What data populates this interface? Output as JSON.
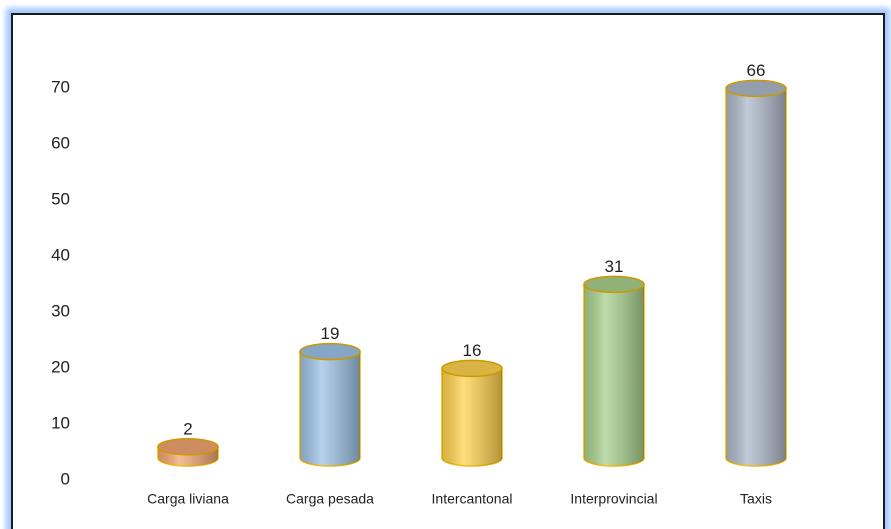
{
  "chart_data": {
    "type": "cylinder-bar",
    "categories": [
      "Carga liviana",
      "Carga pesada",
      "Intercantonal",
      "Interprovincial",
      "Taxis"
    ],
    "values": [
      2,
      19,
      16,
      31,
      66
    ],
    "colors": [
      "#f2a672",
      "#9dc3e6",
      "#ffd34f",
      "#a9d18e",
      "#adb9ca"
    ],
    "edge_color": "#f0b400",
    "ylim": [
      0,
      70
    ],
    "yticks": [
      0,
      10,
      20,
      30,
      40,
      50,
      60,
      70
    ],
    "grid": false
  }
}
